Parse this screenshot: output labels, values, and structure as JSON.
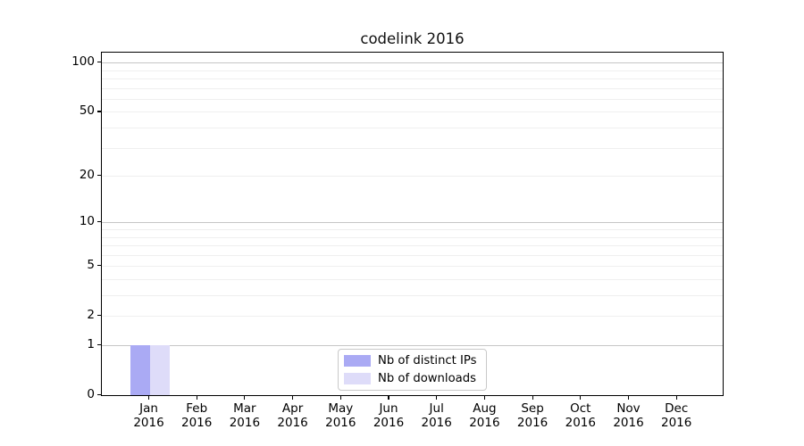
{
  "chart_data": {
    "type": "bar",
    "title": "codelink 2016",
    "x_label_year": "2016",
    "categories": [
      "Jan",
      "Feb",
      "Mar",
      "Apr",
      "May",
      "Jun",
      "Jul",
      "Aug",
      "Sep",
      "Oct",
      "Nov",
      "Dec"
    ],
    "series": [
      {
        "name": "Nb of distinct IPs",
        "color": "#aaaaf4",
        "values": [
          1,
          0,
          0,
          0,
          0,
          0,
          0,
          0,
          0,
          0,
          0,
          0
        ]
      },
      {
        "name": "Nb of downloads",
        "color": "#dedcf9",
        "values": [
          1,
          0,
          0,
          0,
          0,
          0,
          0,
          0,
          0,
          0,
          0,
          0
        ]
      }
    ],
    "y_axis": {
      "scale": "log10(1+value)",
      "ticks": [
        0,
        1,
        2,
        5,
        10,
        20,
        50,
        100
      ],
      "range": [
        0,
        116
      ]
    },
    "grid": {
      "major_values": [
        1,
        10,
        100
      ],
      "minor_values": [
        2,
        3,
        4,
        5,
        6,
        7,
        8,
        9,
        20,
        30,
        40,
        50,
        60,
        70,
        80,
        90
      ],
      "major_color": "#c5c5c5",
      "minor_color": "#efefef"
    },
    "legend": {
      "position": "lower center",
      "entries": [
        "Nb of distinct IPs",
        "Nb of downloads"
      ]
    }
  }
}
